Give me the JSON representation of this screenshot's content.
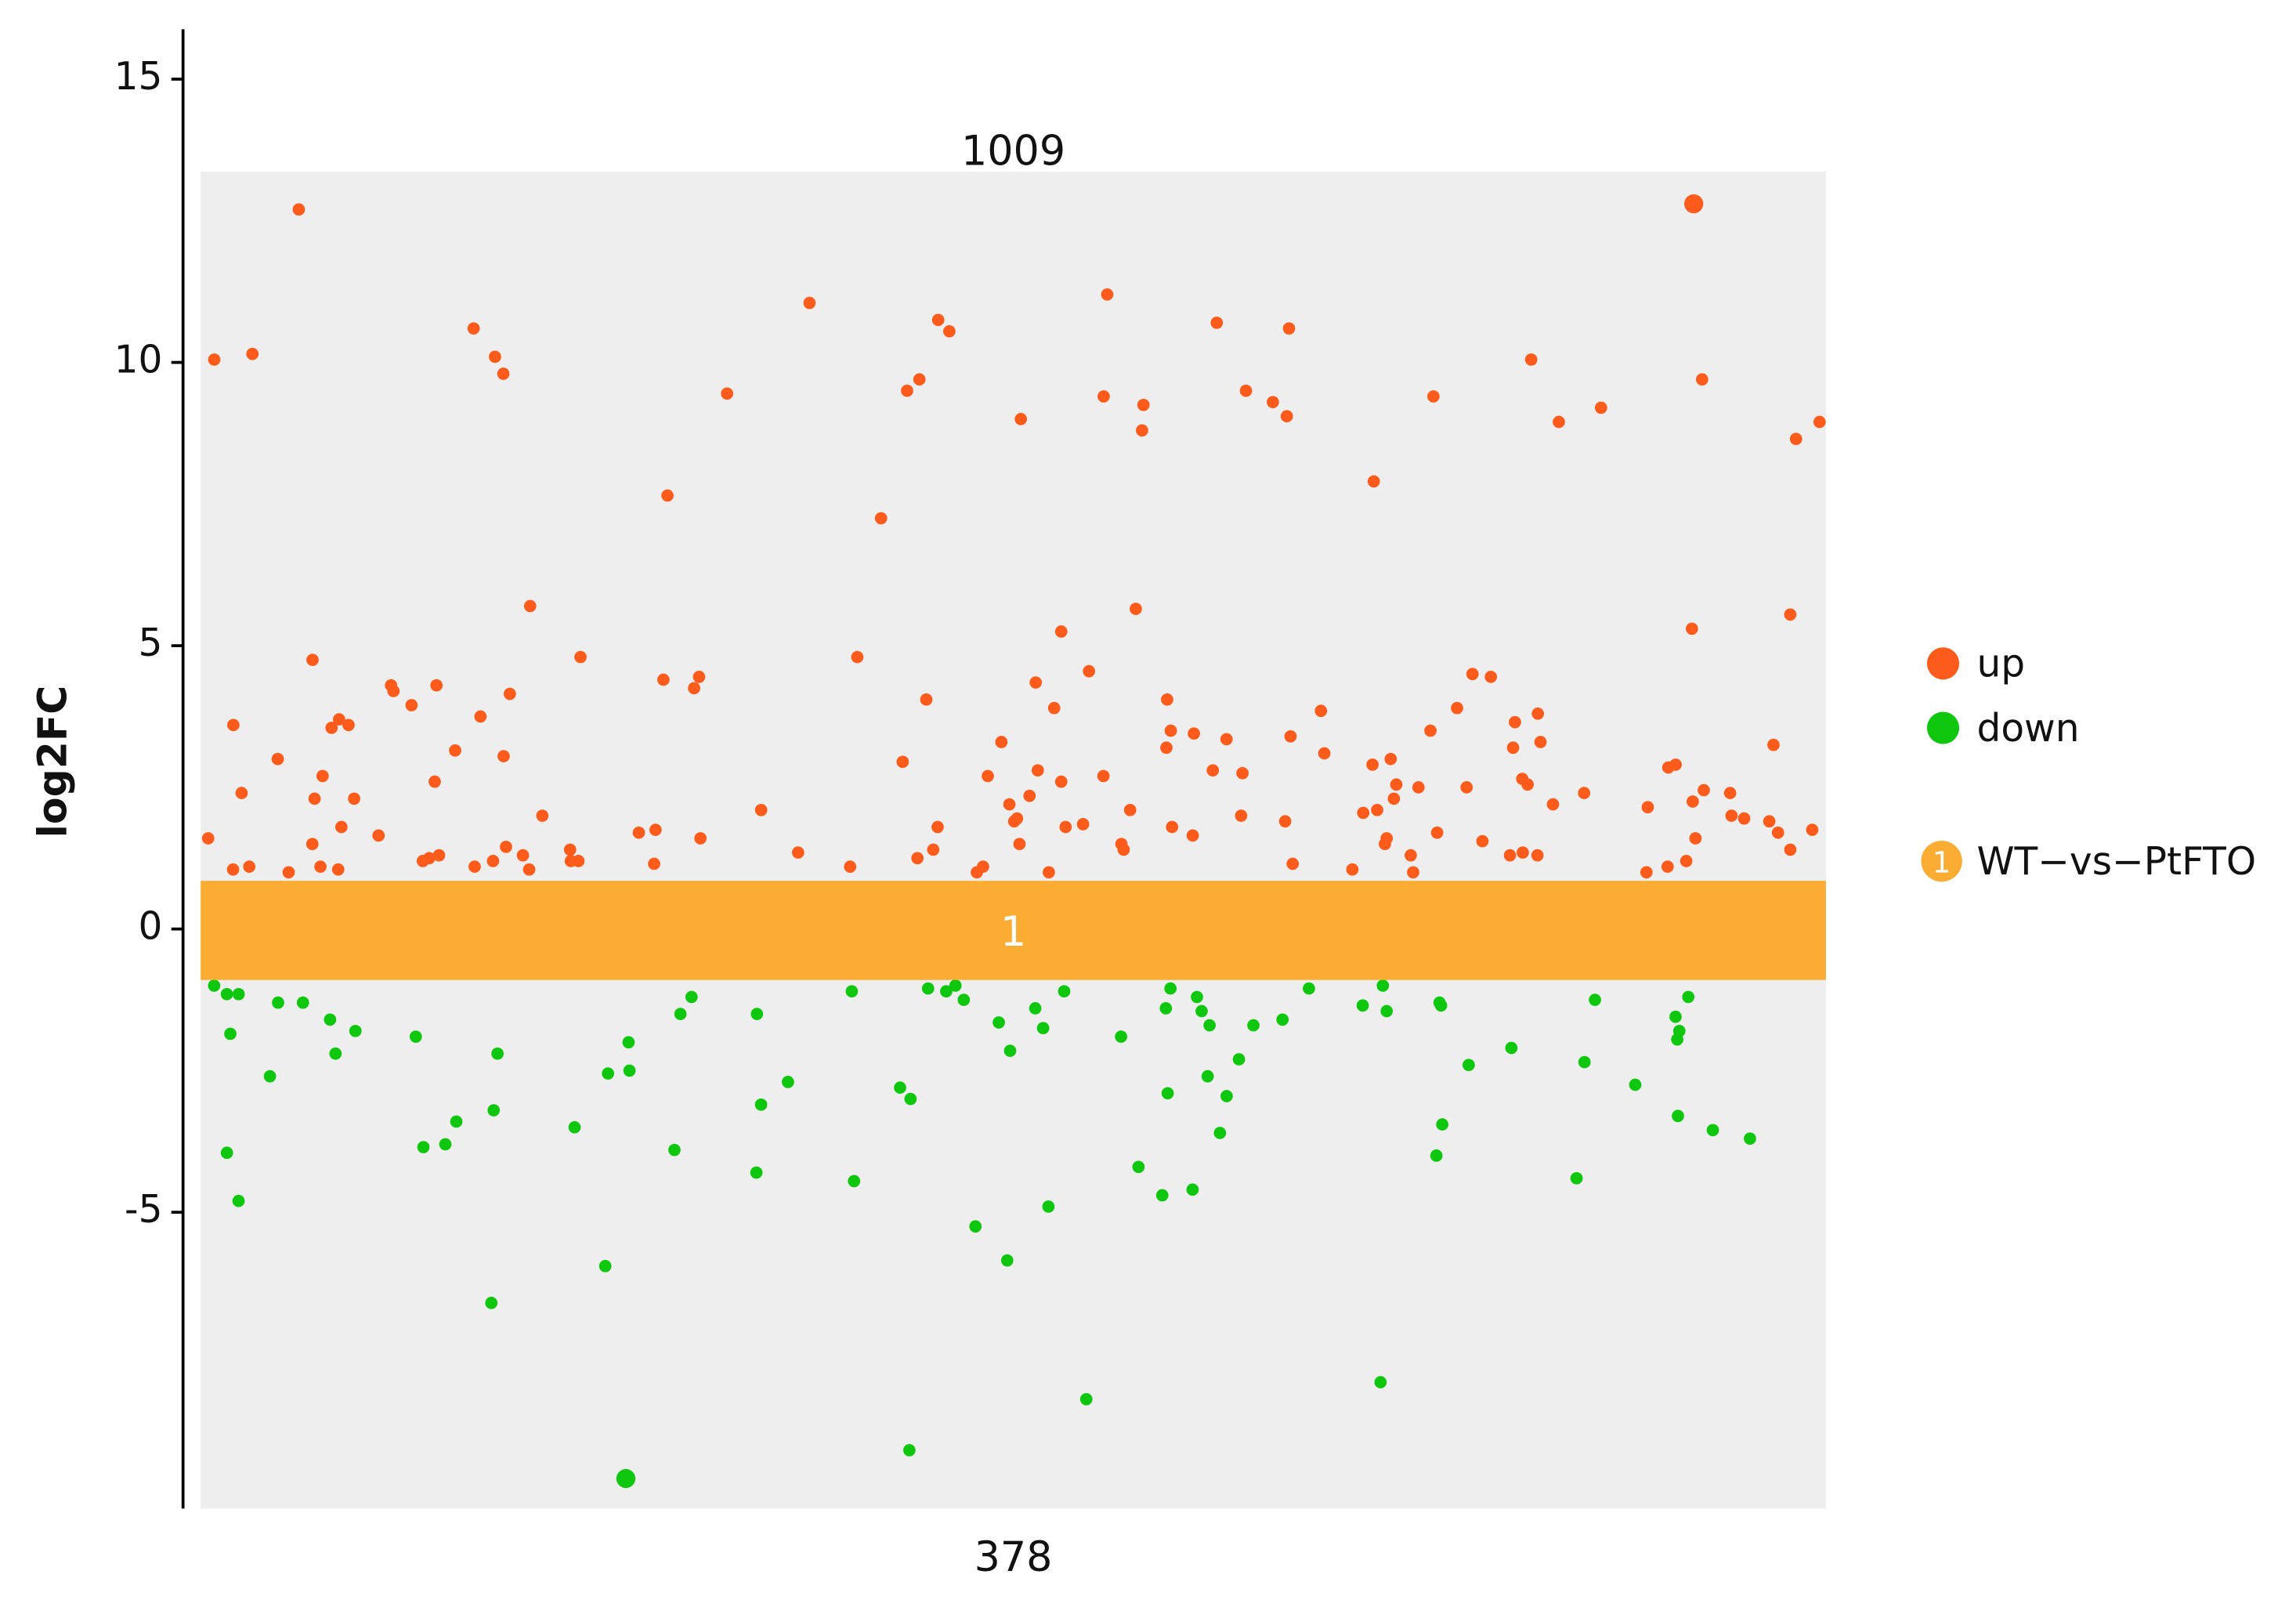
{
  "chart_data": {
    "type": "scatter",
    "y_label": "log2FC",
    "ylim": [
      -10.23,
      15.88
    ],
    "yticks": [
      -5,
      0,
      5,
      10,
      15
    ],
    "groups": [
      {
        "label": "1",
        "name": "WT−vs−PtFTO",
        "color": "#fbad33",
        "range": [
          -0.9,
          0.85
        ],
        "up_count": 1009,
        "down_count": 378
      }
    ],
    "series": [
      {
        "name": "up",
        "color": "#fc5b1c",
        "values": [
          12.8,
          12.7,
          11.2,
          11.05,
          10.75,
          10.7,
          10.6,
          10.6,
          10.55,
          10.15,
          10.1,
          10.05,
          10.05,
          9.8,
          9.7,
          9.7,
          9.5,
          9.5,
          9.45,
          9.4,
          9.4,
          9.3,
          9.25,
          9.2,
          9.05,
          9.0,
          8.95,
          8.95,
          8.8,
          8.65,
          7.9,
          7.65,
          7.25,
          5.7,
          5.65,
          5.55,
          5.3,
          5.25,
          4.8,
          4.8,
          4.75,
          4.55,
          4.5,
          4.45,
          4.45,
          4.4,
          4.35,
          4.3,
          4.3,
          4.25,
          4.2,
          4.15,
          4.05,
          4.05,
          3.95,
          3.9,
          3.9,
          3.85,
          3.8,
          3.75,
          3.7,
          3.65,
          3.6,
          3.6,
          3.55,
          3.5,
          3.5,
          3.45,
          3.4,
          3.35,
          3.3,
          3.3,
          3.25,
          3.2,
          3.2,
          3.15,
          3.1,
          3.05,
          3.0,
          3.0,
          2.95,
          2.9,
          2.9,
          2.85,
          2.8,
          2.8,
          2.75,
          2.7,
          2.7,
          2.65,
          2.6,
          2.6,
          2.55,
          2.5,
          2.5,
          2.45,
          2.4,
          2.4,
          2.35,
          2.3,
          2.3,
          2.25,
          2.2,
          2.2,
          2.15,
          2.1,
          2.1,
          2.05,
          2.0,
          2.0,
          2.0,
          1.95,
          1.9,
          1.9,
          1.85,
          1.8,
          1.8,
          1.8,
          1.75,
          1.7,
          1.7,
          1.7,
          1.65,
          1.6,
          1.6,
          1.6,
          1.55,
          1.5,
          1.5,
          1.5,
          1.45,
          1.4,
          1.4,
          1.4,
          1.35,
          1.3,
          1.3,
          1.3,
          1.3,
          1.25,
          1.2,
          1.2,
          1.2,
          1.2,
          1.15,
          1.1,
          1.1,
          1.1,
          1.1,
          1.1,
          1.05,
          1.05,
          1.05,
          1.0,
          1.0,
          1.0,
          1.0,
          1.0,
          1.9,
          2.3,
          1.4,
          1.6,
          2.7,
          1.2,
          1.8,
          2.1,
          1.3,
          1.5,
          1.15,
          2.4,
          1.75,
          1.25,
          1.05,
          1.95,
          1.35,
          2.55,
          1.65,
          1.1
        ]
      },
      {
        "name": "down",
        "color": "#0fc70f",
        "values": [
          -9.7,
          -9.2,
          -8.3,
          -8.0,
          -6.6,
          -5.95,
          -5.85,
          -5.25,
          -4.9,
          -4.8,
          -4.7,
          -4.6,
          -4.45,
          -4.4,
          -4.3,
          -4.2,
          -4.0,
          -3.95,
          -3.9,
          -3.85,
          -3.8,
          -3.7,
          -3.6,
          -3.55,
          -3.5,
          -3.45,
          -3.4,
          -3.3,
          -3.2,
          -3.1,
          -3.0,
          -2.95,
          -2.9,
          -2.8,
          -2.75,
          -2.7,
          -2.6,
          -2.55,
          -2.5,
          -2.4,
          -2.35,
          -2.3,
          -2.2,
          -2.15,
          -2.1,
          -2.0,
          -1.95,
          -1.9,
          -1.85,
          -1.8,
          -1.75,
          -1.7,
          -1.65,
          -1.6,
          -1.55,
          -1.5,
          -1.5,
          -1.45,
          -1.4,
          -1.4,
          -1.35,
          -1.3,
          -1.3,
          -1.25,
          -1.2,
          -1.2,
          -1.15,
          -1.1,
          -1.1,
          -1.05,
          -1.05,
          -1.0,
          -1.0,
          -1.0,
          -1.6,
          -1.3,
          -2.2,
          -1.15,
          -1.45,
          -1.8,
          -1.25,
          -2.6,
          -1.05,
          -1.35,
          -1.7,
          -1.2,
          -1.9,
          -1.1
        ]
      }
    ]
  }
}
